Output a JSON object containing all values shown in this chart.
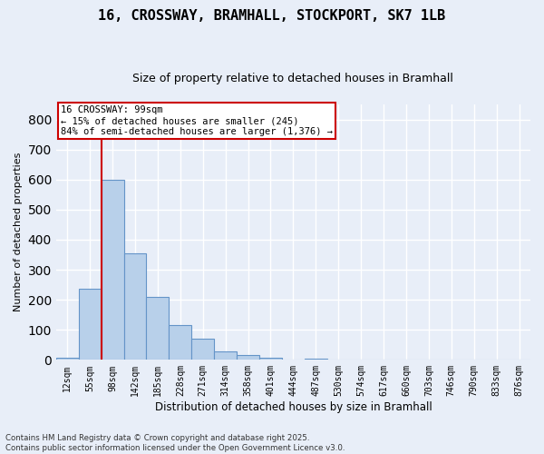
{
  "title_line1": "16, CROSSWAY, BRAMHALL, STOCKPORT, SK7 1LB",
  "title_line2": "Size of property relative to detached houses in Bramhall",
  "xlabel": "Distribution of detached houses by size in Bramhall",
  "ylabel": "Number of detached properties",
  "footer_line1": "Contains HM Land Registry data © Crown copyright and database right 2025.",
  "footer_line2": "Contains public sector information licensed under the Open Government Licence v3.0.",
  "bar_labels": [
    "12sqm",
    "55sqm",
    "98sqm",
    "142sqm",
    "185sqm",
    "228sqm",
    "271sqm",
    "314sqm",
    "358sqm",
    "401sqm",
    "444sqm",
    "487sqm",
    "530sqm",
    "574sqm",
    "617sqm",
    "660sqm",
    "703sqm",
    "746sqm",
    "790sqm",
    "833sqm",
    "876sqm"
  ],
  "bar_values": [
    8,
    238,
    600,
    353,
    208,
    115,
    70,
    28,
    15,
    8,
    0,
    5,
    0,
    0,
    0,
    0,
    0,
    0,
    0,
    0,
    0
  ],
  "bar_color": "#b8d0ea",
  "bar_edge_color": "#6494c8",
  "background_color": "#e8eef8",
  "grid_color": "#ffffff",
  "vline_x": 1.5,
  "vline_color": "#cc0000",
  "annotation_text": "16 CROSSWAY: 99sqm\n← 15% of detached houses are smaller (245)\n84% of semi-detached houses are larger (1,376) →",
  "annotation_box_color": "#cc0000",
  "ylim": [
    0,
    850
  ],
  "yticks": [
    0,
    100,
    200,
    300,
    400,
    500,
    600,
    700,
    800
  ]
}
